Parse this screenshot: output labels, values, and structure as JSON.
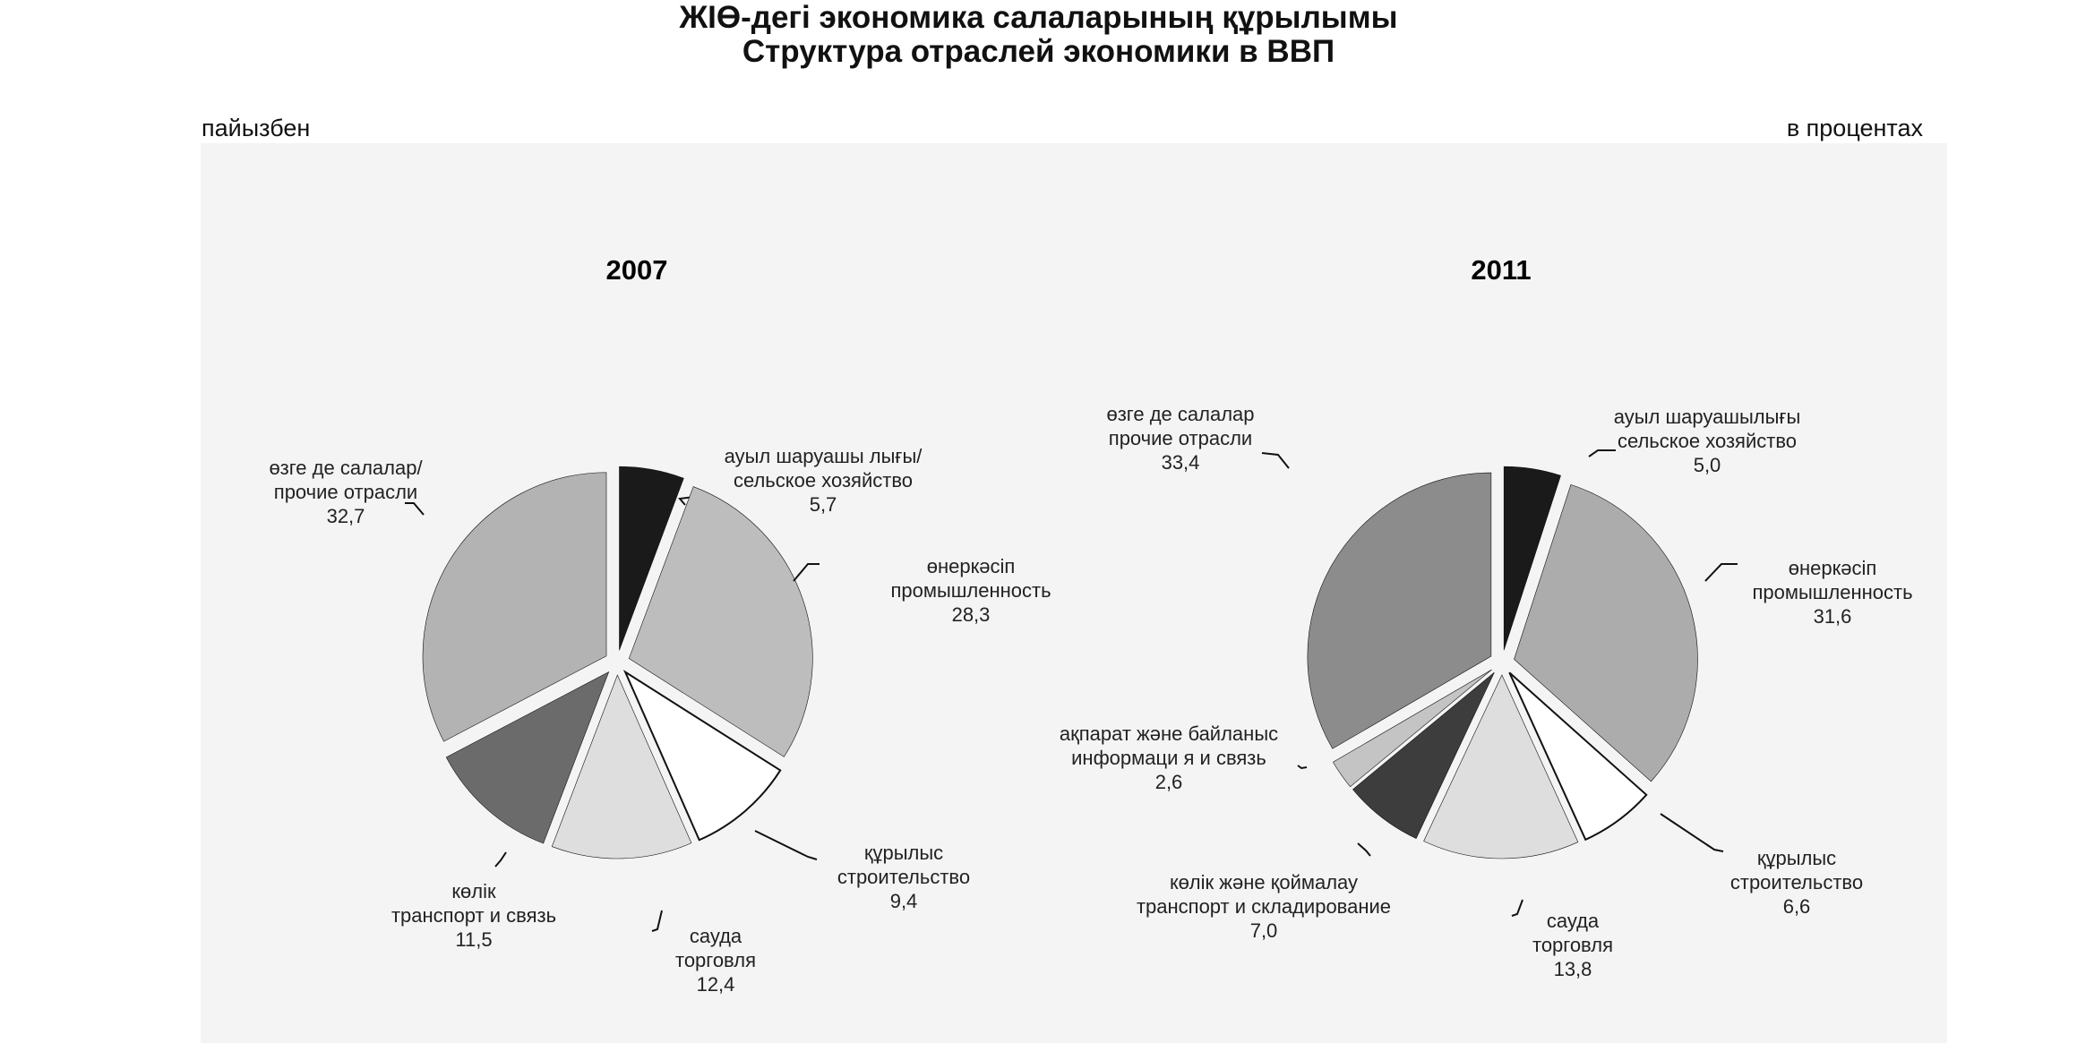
{
  "header": {
    "title_kz": "ЖІӨ-дегі экономика салаларының құрылымы",
    "title_ru": "Структура отраслей экономики в ВВП",
    "unit_left": "пайызбен",
    "unit_right": "в процентах"
  },
  "chart_data": [
    {
      "type": "pie",
      "title": "2007",
      "slices": [
        {
          "name_kz": "ауыл шаруашы лығы/",
          "name_ru": "сельское хозяйство",
          "value": 5.7,
          "value_label": "5,7",
          "color": "#1a1a1a"
        },
        {
          "name_kz": "өнеркәсіп",
          "name_ru": "промышленность",
          "value": 28.3,
          "value_label": "28,3",
          "color": "#bdbdbd"
        },
        {
          "name_kz": "құрылыс",
          "name_ru": "строительство",
          "value": 9.4,
          "value_label": "9,4",
          "color": "#ffffff"
        },
        {
          "name_kz": "сауда",
          "name_ru": "торговля",
          "value": 12.4,
          "value_label": "12,4",
          "color": "#dedede"
        },
        {
          "name_kz": "көлік",
          "name_ru": "транспорт и связь",
          "value": 11.5,
          "value_label": "11,5",
          "color": "#6b6b6b"
        },
        {
          "name_kz": "өзге де салалар/",
          "name_ru": "прочие отрасли",
          "value": 32.7,
          "value_label": "32,7",
          "color": "#b3b3b3"
        }
      ]
    },
    {
      "type": "pie",
      "title": "2011",
      "slices": [
        {
          "name_kz": "ауыл шаруашылығы",
          "name_ru": "сельское хозяйство",
          "value": 5.0,
          "value_label": "5,0",
          "color": "#1a1a1a"
        },
        {
          "name_kz": "өнеркәсіп",
          "name_ru": "промышленность",
          "value": 31.6,
          "value_label": "31,6",
          "color": "#acacac"
        },
        {
          "name_kz": "құрылыс",
          "name_ru": "строительство",
          "value": 6.6,
          "value_label": "6,6",
          "color": "#ffffff"
        },
        {
          "name_kz": "сауда",
          "name_ru": "торговля",
          "value": 13.8,
          "value_label": "13,8",
          "color": "#dedede"
        },
        {
          "name_kz": "көлік және қоймалау",
          "name_ru": "транспорт и складирование",
          "value": 7.0,
          "value_label": "7,0",
          "color": "#3d3d3d"
        },
        {
          "name_kz": "ақпарат және байланыс",
          "name_ru": "информаци я и связь",
          "value": 2.6,
          "value_label": "2,6",
          "color": "#c4c4c4"
        },
        {
          "name_kz": "өзге де салалар",
          "name_ru": "прочие отрасли",
          "value": 33.4,
          "value_label": "33,4",
          "color": "#8c8c8c"
        }
      ]
    }
  ]
}
